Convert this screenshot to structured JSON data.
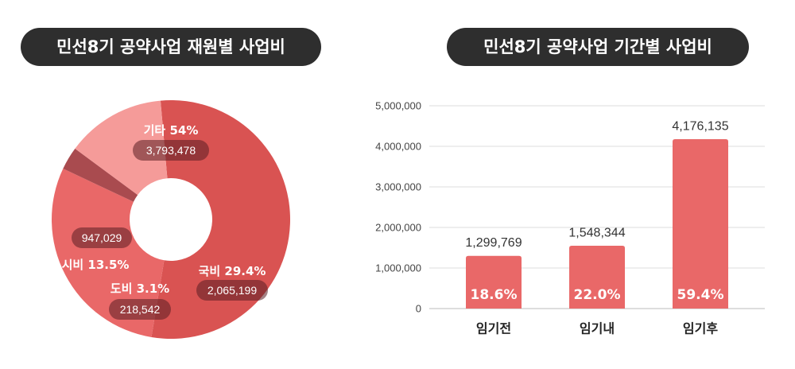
{
  "chart_data": [
    {
      "type": "pie",
      "title": "민선8기 공약사업 재원별 사업비",
      "slices": [
        {
          "label": "기타 54%",
          "value": 3793478,
          "value_label": "3,793,478",
          "percent": 54.0,
          "color": "#d95352"
        },
        {
          "label": "국비 29.4%",
          "value": 2065199,
          "value_label": "2,065,199",
          "percent": 29.4,
          "color": "#e96868"
        },
        {
          "label": "도비 3.1%",
          "value": 218542,
          "value_label": "218,542",
          "percent": 3.1,
          "color": "#a94b4f"
        },
        {
          "label": "시비 13.5%",
          "value": 947029,
          "value_label": "947,029",
          "percent": 13.5,
          "color": "#f59b99"
        }
      ]
    },
    {
      "type": "bar",
      "title": "민선8기 공약사업 기간별 사업비",
      "categories": [
        "임기전",
        "임기내",
        "임기후"
      ],
      "values": [
        1299769,
        1548344,
        4176135
      ],
      "value_labels": [
        "1,299,769",
        "1,548,344",
        "4,176,135"
      ],
      "percent_labels": [
        "18.6%",
        "22.0%",
        "59.4%"
      ],
      "ylim": [
        0,
        5000000
      ],
      "yticks": [
        0,
        1000000,
        2000000,
        3000000,
        4000000,
        5000000
      ],
      "ytick_labels": [
        "0",
        "1,000,000",
        "2,000,000",
        "3,000,000",
        "4,000,000",
        "5,000,000"
      ],
      "grid": true,
      "bar_color": "#e96868"
    }
  ]
}
